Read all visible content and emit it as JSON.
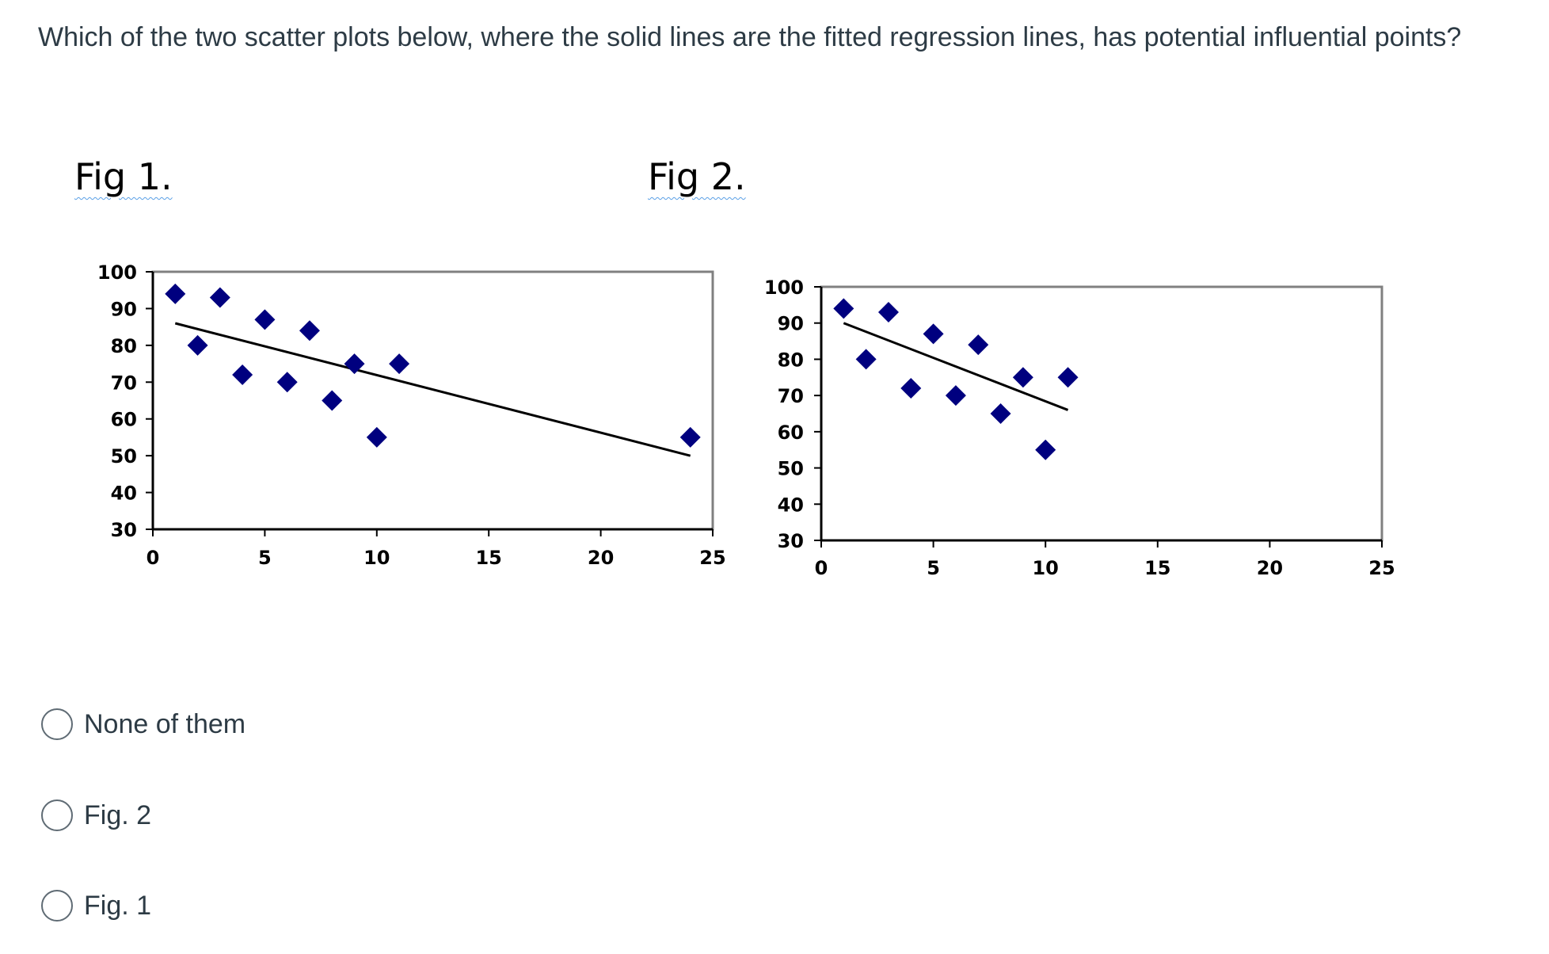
{
  "question": "Which of the two scatter plots below, where the solid lines are the fitted regression lines, has potential influential points?",
  "options": [
    {
      "label": "None of them",
      "selected": false
    },
    {
      "label": "Fig. 2",
      "selected": false
    },
    {
      "label": "Fig. 1",
      "selected": false
    }
  ],
  "chart_data": [
    {
      "type": "scatter",
      "title": "Fig 1.",
      "xlabel": "",
      "ylabel": "",
      "xlim": [
        0,
        25
      ],
      "ylim": [
        30,
        100
      ],
      "xticks": [
        "0",
        "5",
        "10",
        "15",
        "20",
        "25"
      ],
      "yticks": [
        "100",
        "90",
        "80",
        "70",
        "60",
        "50",
        "40",
        "30"
      ],
      "points": [
        [
          1,
          94
        ],
        [
          2,
          80
        ],
        [
          3,
          93
        ],
        [
          4,
          72
        ],
        [
          5,
          87
        ],
        [
          6,
          70
        ],
        [
          7,
          84
        ],
        [
          8,
          65
        ],
        [
          9,
          75
        ],
        [
          10,
          55
        ],
        [
          11,
          75
        ],
        [
          24,
          55
        ]
      ],
      "regression_line": [
        [
          1,
          86
        ],
        [
          24,
          50
        ]
      ],
      "marker": "diamond",
      "marker_color": "#00007f",
      "line_color": "#000000",
      "grid": false
    },
    {
      "type": "scatter",
      "title": "Fig 2.",
      "xlabel": "",
      "ylabel": "",
      "xlim": [
        0,
        25
      ],
      "ylim": [
        30,
        100
      ],
      "xticks": [
        "0",
        "5",
        "10",
        "15",
        "20",
        "25"
      ],
      "yticks": [
        "100",
        "90",
        "80",
        "70",
        "60",
        "50",
        "40",
        "30"
      ],
      "points": [
        [
          1,
          94
        ],
        [
          2,
          80
        ],
        [
          3,
          93
        ],
        [
          4,
          72
        ],
        [
          5,
          87
        ],
        [
          6,
          70
        ],
        [
          7,
          84
        ],
        [
          8,
          65
        ],
        [
          9,
          75
        ],
        [
          10,
          55
        ],
        [
          11,
          75
        ]
      ],
      "regression_line": [
        [
          1,
          90
        ],
        [
          11,
          66
        ]
      ],
      "marker": "diamond",
      "marker_color": "#00007f",
      "line_color": "#000000",
      "grid": false
    }
  ]
}
